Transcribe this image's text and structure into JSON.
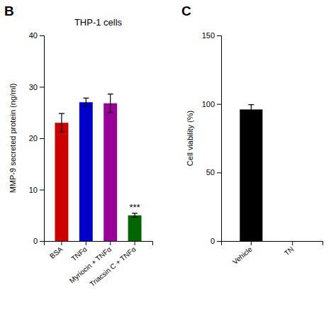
{
  "chart_data": [
    {
      "type": "bar",
      "panel_label": "B",
      "title": "THP-1 cells",
      "categories": [
        "BSA",
        "TNFα",
        "Myriocin + TNFα",
        "Triacsin C + TNFα"
      ],
      "values": [
        23.0,
        27.0,
        26.8,
        5.0
      ],
      "errors": [
        1.8,
        0.8,
        1.8,
        0.4
      ],
      "colors": [
        "#cc0000",
        "#0000cc",
        "#990099",
        "#006600"
      ],
      "ylabel": "MMP-9 secreted protein (ng/ml)",
      "ylim": [
        0,
        40
      ],
      "yticks": [
        0,
        10,
        20,
        30,
        40
      ],
      "annotations": [
        {
          "text": "***",
          "category": "Triacsin C + TNFα"
        }
      ]
    },
    {
      "type": "bar",
      "panel_label": "C",
      "categories": [
        "Vehicle",
        "TN"
      ],
      "values": [
        96.0,
        null
      ],
      "errors": [
        3.5,
        null
      ],
      "color": "#000000",
      "ylabel": "Cell viability (%)",
      "ylim": [
        0,
        150
      ],
      "yticks": [
        0,
        50,
        100,
        150
      ]
    }
  ]
}
